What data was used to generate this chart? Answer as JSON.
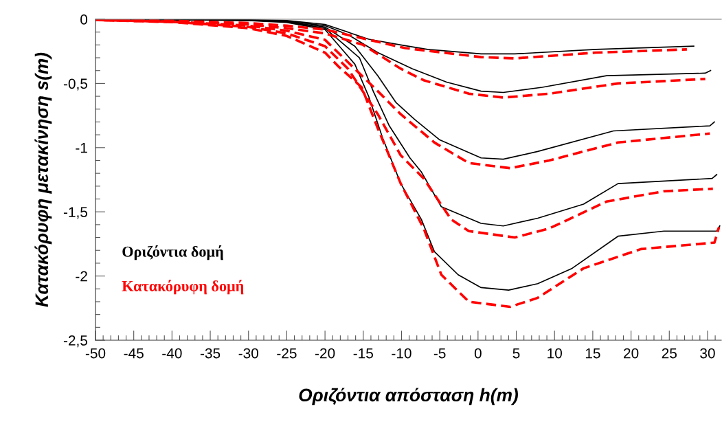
{
  "chart_data": {
    "type": "line",
    "xlabel": "Οριζόντια απόσταση h(m)",
    "ylabel": "Κατακόρυφη μετακίνηση s(m)",
    "xlim": [
      -50,
      31.8
    ],
    "ylim": [
      -2.5,
      0
    ],
    "xticks": [
      -50,
      {
        "value": -49,
        "label": null
      },
      {
        "value": -48,
        "label": null
      },
      {
        "value": -47,
        "label": null
      },
      {
        "value": -46,
        "label": null
      },
      -45,
      {
        "value": -44,
        "label": null
      },
      {
        "value": -43,
        "label": null
      },
      {
        "value": -42,
        "label": null
      },
      {
        "value": -41,
        "label": null
      },
      -40,
      {
        "value": -39,
        "label": null
      },
      {
        "value": -38,
        "label": null
      },
      {
        "value": -37,
        "label": null
      },
      {
        "value": -36,
        "label": null
      },
      -35,
      {
        "value": -34,
        "label": null
      },
      {
        "value": -33,
        "label": null
      },
      {
        "value": -32,
        "label": null
      },
      {
        "value": -31,
        "label": null
      },
      -30,
      {
        "value": -29,
        "label": null
      },
      {
        "value": -28,
        "label": null
      },
      {
        "value": -27,
        "label": null
      },
      {
        "value": -26,
        "label": null
      },
      -25,
      {
        "value": -24,
        "label": null
      },
      {
        "value": -23,
        "label": null
      },
      {
        "value": -22,
        "label": null
      },
      {
        "value": -21,
        "label": null
      },
      -20,
      {
        "value": -19,
        "label": null
      },
      {
        "value": -18,
        "label": null
      },
      {
        "value": -17,
        "label": null
      },
      {
        "value": -16,
        "label": null
      },
      -15,
      {
        "value": -14,
        "label": null
      },
      {
        "value": -13,
        "label": null
      },
      {
        "value": -12,
        "label": null
      },
      {
        "value": -11,
        "label": null
      },
      -10,
      {
        "value": -9,
        "label": null
      },
      {
        "value": -8,
        "label": null
      },
      {
        "value": -7,
        "label": null
      },
      {
        "value": -6,
        "label": null
      },
      -5,
      {
        "value": -4,
        "label": null
      },
      {
        "value": -3,
        "label": null
      },
      {
        "value": -2,
        "label": null
      },
      {
        "value": -1,
        "label": null
      },
      0,
      {
        "value": 1,
        "label": null
      },
      {
        "value": 2,
        "label": null
      },
      {
        "value": 3,
        "label": null
      },
      {
        "value": 4,
        "label": null
      },
      5,
      {
        "value": 6,
        "label": null
      },
      {
        "value": 7,
        "label": null
      },
      {
        "value": 8,
        "label": null
      },
      {
        "value": 9,
        "label": null
      },
      10,
      {
        "value": 11,
        "label": null
      },
      {
        "value": 12,
        "label": null
      },
      {
        "value": 13,
        "label": null
      },
      {
        "value": 14,
        "label": null
      },
      15,
      {
        "value": 16,
        "label": null
      },
      {
        "value": 17,
        "label": null
      },
      {
        "value": 18,
        "label": null
      },
      {
        "value": 19,
        "label": null
      },
      20,
      {
        "value": 21,
        "label": null
      },
      {
        "value": 22,
        "label": null
      },
      {
        "value": 23,
        "label": null
      },
      {
        "value": 24,
        "label": null
      },
      25,
      {
        "value": 26,
        "label": null
      },
      {
        "value": 27,
        "label": null
      },
      {
        "value": 28,
        "label": null
      },
      {
        "value": 29,
        "label": null
      },
      30,
      {
        "value": 31,
        "label": null
      }
    ],
    "yticks": [
      0,
      {
        "value": -0.1,
        "label": null
      },
      {
        "value": -0.2,
        "label": null
      },
      {
        "value": -0.3,
        "label": null
      },
      {
        "value": -0.4,
        "label": null
      },
      {
        "value": -0.5,
        "label": "-0,5"
      },
      {
        "value": -0.6,
        "label": null
      },
      {
        "value": -0.7,
        "label": null
      },
      {
        "value": -0.8,
        "label": null
      },
      {
        "value": -0.9,
        "label": null
      },
      -1,
      {
        "value": -1.1,
        "label": null
      },
      {
        "value": -1.2,
        "label": null
      },
      {
        "value": -1.3,
        "label": null
      },
      {
        "value": -1.4,
        "label": null
      },
      {
        "value": -1.5,
        "label": "-1,5"
      },
      {
        "value": -1.6,
        "label": null
      },
      {
        "value": -1.7,
        "label": null
      },
      {
        "value": -1.8,
        "label": null
      },
      {
        "value": -1.9,
        "label": null
      },
      -2,
      {
        "value": -2.1,
        "label": null
      },
      {
        "value": -2.2,
        "label": null
      },
      {
        "value": -2.3,
        "label": null
      },
      {
        "value": -2.4,
        "label": null
      },
      {
        "value": -2.5,
        "label": "-2,5"
      }
    ],
    "grid": false,
    "legend": "bottom left",
    "marker": "none",
    "series": [
      {
        "name": "Οριζόντια δομή",
        "color": "#000000",
        "line_style": "solid",
        "x": [
          -50,
          -40,
          -30,
          -25,
          -20,
          -14.3,
          -10.1,
          -6.6,
          0.4,
          4.8,
          15.4,
          28.2
        ],
        "values": [
          0,
          -0.002,
          -0.005,
          -0.01,
          -0.04,
          -0.155,
          -0.2,
          -0.235,
          -0.27,
          -0.27,
          -0.235,
          -0.21
        ]
      },
      {
        "color": "#000000",
        "line_style": "solid",
        "x": [
          -50,
          -40,
          -30,
          -25,
          -20,
          -17,
          -13.1,
          -8.6,
          -4.1,
          0.4,
          3.3,
          8.4,
          16.8,
          29.7,
          30.4
        ],
        "values": [
          0,
          -0.003,
          -0.007,
          -0.015,
          -0.05,
          -0.12,
          -0.26,
          -0.385,
          -0.49,
          -0.56,
          -0.57,
          -0.53,
          -0.44,
          -0.42,
          -0.4
        ]
      },
      {
        "color": "#000000",
        "line_style": "solid",
        "x": [
          -50,
          -40,
          -30,
          -25,
          -20,
          -16.1,
          -13.1,
          -10.7,
          -8.3,
          -5,
          0.4,
          3.3,
          7.8,
          17.7,
          30.3,
          30.9
        ],
        "values": [
          0,
          -0.003,
          -0.008,
          -0.02,
          -0.06,
          -0.21,
          -0.44,
          -0.65,
          -0.78,
          -0.94,
          -1.08,
          -1.09,
          -1.03,
          -0.87,
          -0.83,
          -0.8
        ]
      },
      {
        "color": "#000000",
        "line_style": "solid",
        "x": [
          -50,
          -40,
          -30,
          -25,
          -20,
          -15.5,
          -13.7,
          -11.6,
          -8.9,
          -7.4,
          -4.8,
          0.4,
          3.3,
          7.8,
          13.8,
          18.3,
          30.6,
          31.2
        ],
        "values": [
          0,
          -0.004,
          -0.009,
          -0.02,
          -0.07,
          -0.3,
          -0.56,
          -0.83,
          -1.08,
          -1.19,
          -1.46,
          -1.59,
          -1.61,
          -1.55,
          -1.44,
          -1.28,
          -1.24,
          -1.21
        ]
      },
      {
        "color": "#000000",
        "line_style": "solid",
        "x": [
          -50,
          -40,
          -30,
          -25,
          -20,
          -16.1,
          -14.3,
          -12.5,
          -10.1,
          -7.4,
          -5.7,
          -2.6,
          0.4,
          4,
          7.8,
          12.3,
          18.3,
          24.3,
          31.2,
          31.6
        ],
        "values": [
          0,
          -0.004,
          -0.01,
          -0.025,
          -0.08,
          -0.35,
          -0.6,
          -0.92,
          -1.28,
          -1.56,
          -1.81,
          -1.99,
          -2.09,
          -2.11,
          -2.06,
          -1.94,
          -1.69,
          -1.65,
          -1.65,
          -1.61
        ]
      },
      {
        "name": "Κατακόρυφη δομή",
        "color": "#ff0000",
        "line_style": "dashed",
        "x": [
          -50,
          -40,
          -30,
          -25,
          -20,
          -16.1,
          -9.5,
          0.4,
          4.8,
          15.4,
          27.3
        ],
        "values": [
          -0.005,
          -0.012,
          -0.03,
          -0.05,
          -0.08,
          -0.135,
          -0.225,
          -0.295,
          -0.305,
          -0.26,
          -0.235
        ]
      },
      {
        "color": "#ff0000",
        "line_style": "dashed",
        "x": [
          -50,
          -40,
          -30,
          -25,
          -20,
          -15,
          -10.1,
          -7.1,
          -1.2,
          3.3,
          9.3,
          18.3,
          29.7
        ],
        "values": [
          -0.005,
          -0.015,
          -0.04,
          -0.07,
          -0.11,
          -0.2,
          -0.385,
          -0.475,
          -0.58,
          -0.61,
          -0.58,
          -0.5,
          -0.465
        ]
      },
      {
        "color": "#ff0000",
        "line_style": "dashed",
        "x": [
          -50,
          -40,
          -30,
          -25,
          -20,
          -17.6,
          -13.1,
          -10.1,
          -5.7,
          -1.2,
          4.2,
          9.3,
          18.3,
          30.3
        ],
        "values": [
          -0.005,
          -0.018,
          -0.05,
          -0.09,
          -0.16,
          -0.3,
          -0.56,
          -0.74,
          -0.96,
          -1.12,
          -1.16,
          -1.1,
          -0.96,
          -0.89
        ]
      },
      {
        "color": "#ff0000",
        "line_style": "dashed",
        "x": [
          -50,
          -40,
          -30,
          -25,
          -20,
          -17,
          -13.1,
          -10.1,
          -7.1,
          -3.5,
          -1.2,
          4.8,
          9.3,
          16.8,
          24.3,
          30.7
        ],
        "values": [
          -0.006,
          -0.02,
          -0.06,
          -0.11,
          -0.21,
          -0.385,
          -0.74,
          -1.06,
          -1.24,
          -1.56,
          -1.65,
          -1.7,
          -1.63,
          -1.42,
          -1.34,
          -1.32
        ]
      },
      {
        "color": "#ff0000",
        "line_style": "dashed",
        "x": [
          -50,
          -40,
          -30,
          -25,
          -20,
          -18.2,
          -15.2,
          -13.1,
          -10.1,
          -7.1,
          -4.8,
          -1.2,
          4.2,
          7.8,
          13.8,
          21.3,
          30.9,
          31.5
        ],
        "values": [
          -0.006,
          -0.022,
          -0.07,
          -0.13,
          -0.26,
          -0.37,
          -0.53,
          -0.85,
          -1.28,
          -1.63,
          -1.99,
          -2.2,
          -2.24,
          -2.17,
          -1.94,
          -1.79,
          -1.74,
          -1.62
        ]
      }
    ]
  }
}
